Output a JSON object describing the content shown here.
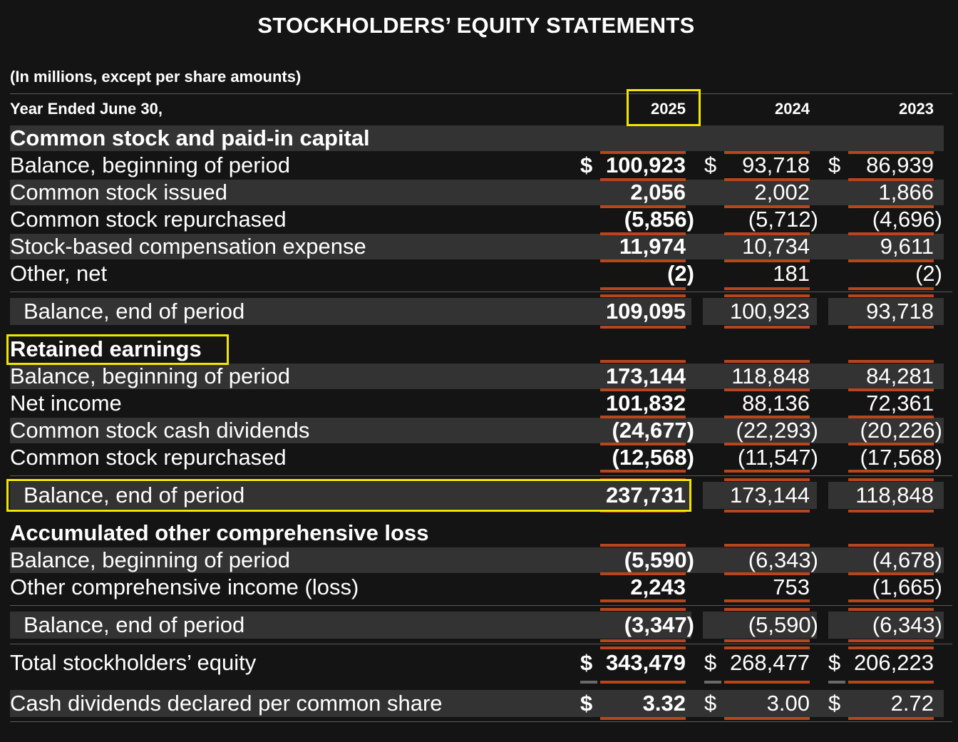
{
  "title": "STOCKHOLDERS’ EQUITY STATEMENTS",
  "units_note": "(In millions, except per share amounts)",
  "header": {
    "label": "Year Ended June 30,",
    "years": [
      "2025",
      "2024",
      "2023"
    ]
  },
  "sections": [
    {
      "title": "Common stock and paid-in capital",
      "rows": [
        {
          "label": "Balance, beginning of period",
          "values": [
            "100,923",
            "93,718",
            "86,939"
          ],
          "currency": true
        },
        {
          "label": "Common stock issued",
          "values": [
            "2,056",
            "2,002",
            "1,866"
          ]
        },
        {
          "label": "Common stock repurchased",
          "values": [
            "(5,856)",
            "(5,712)",
            "(4,696)"
          ]
        },
        {
          "label": "Stock-based compensation expense",
          "values": [
            "11,974",
            "10,734",
            "9,611"
          ]
        },
        {
          "label": "Other, net",
          "values": [
            "(2)",
            "181",
            "(2)"
          ]
        }
      ],
      "total": {
        "label": "Balance, end of period",
        "values": [
          "109,095",
          "100,923",
          "93,718"
        ]
      }
    },
    {
      "title": "Retained earnings",
      "rows": [
        {
          "label": "Balance, beginning of period",
          "values": [
            "173,144",
            "118,848",
            "84,281"
          ]
        },
        {
          "label": "Net income",
          "values": [
            "101,832",
            "88,136",
            "72,361"
          ]
        },
        {
          "label": "Common stock cash dividends",
          "values": [
            "(24,677)",
            "(22,293)",
            "(20,226)"
          ]
        },
        {
          "label": "Common stock repurchased",
          "values": [
            "(12,568)",
            "(11,547)",
            "(17,568)"
          ]
        }
      ],
      "total": {
        "label": "Balance, end of period",
        "values": [
          "237,731",
          "173,144",
          "118,848"
        ]
      }
    },
    {
      "title": "Accumulated other comprehensive loss",
      "rows": [
        {
          "label": "Balance, beginning of period",
          "values": [
            "(5,590)",
            "(6,343)",
            "(4,678)"
          ]
        },
        {
          "label": "Other comprehensive income (loss)",
          "values": [
            "2,243",
            "753",
            "(1,665)"
          ]
        }
      ],
      "total": {
        "label": "Balance, end of period",
        "values": [
          "(3,347)",
          "(5,590)",
          "(6,343)"
        ]
      }
    }
  ],
  "grand_total": {
    "label": "Total stockholders’ equity",
    "values": [
      "343,479",
      "268,477",
      "206,223"
    ]
  },
  "dividends_per_share": {
    "label": "Cash dividends declared per common share",
    "values": [
      "3.32",
      "3.00",
      "2.72"
    ]
  },
  "currency_symbol": "$",
  "colors": {
    "background": "#141414",
    "band": "#333333",
    "underline": "#b8461d",
    "highlight": "#f2e600"
  }
}
